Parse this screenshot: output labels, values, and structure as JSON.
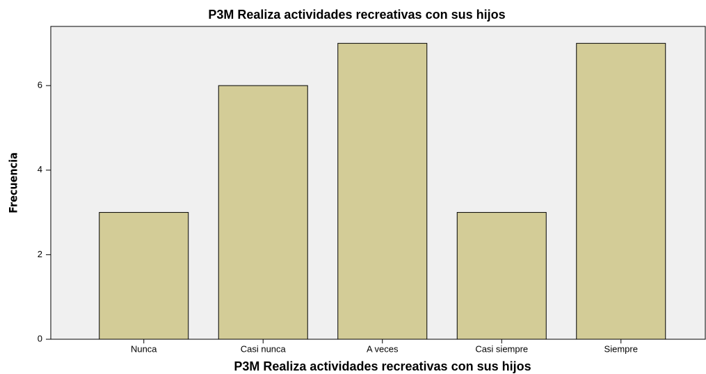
{
  "chart_data": {
    "type": "bar",
    "title": "P3M Realiza actividades recreativas con sus hijos",
    "x_label": "P3M Realiza actividades recreativas con sus hijos",
    "y_label": "Frecuencia",
    "categories": [
      "Nunca",
      "Casi nunca",
      "A veces",
      "Casi siempre",
      "Siempre"
    ],
    "values": [
      3,
      6,
      7,
      3,
      7
    ],
    "color": "#d3cc97",
    "ylim": [
      0,
      7.4
    ],
    "yticks": [
      0,
      2,
      4,
      6
    ]
  }
}
